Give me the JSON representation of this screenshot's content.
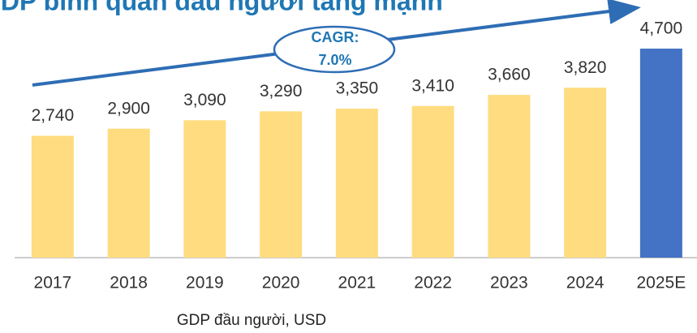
{
  "chart_data": {
    "type": "bar",
    "title": "GDP bình quân đầu người tăng mạnh",
    "categories": [
      "2017",
      "2018",
      "2019",
      "2020",
      "2021",
      "2022",
      "2023",
      "2024",
      "2025E"
    ],
    "values": [
      2740,
      2900,
      3090,
      3290,
      3350,
      3410,
      3660,
      3820,
      4700
    ],
    "value_labels": [
      "2,740",
      "2,900",
      "3,090",
      "3,290",
      "3,350",
      "3,410",
      "3,660",
      "3,820",
      "4,700"
    ],
    "colors": [
      "#FFDC7F",
      "#FFDC7F",
      "#FFDC7F",
      "#FFDC7F",
      "#FFDC7F",
      "#FFDC7F",
      "#FFDC7F",
      "#FFDC7F",
      "#4472C4"
    ],
    "annotation": {
      "label": "CAGR:",
      "value": "7.0%"
    },
    "x_label": "GDP đầu người, USD"
  }
}
